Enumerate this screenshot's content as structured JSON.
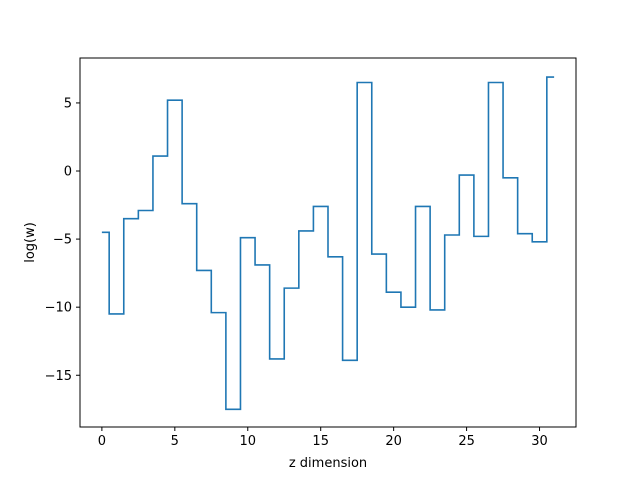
{
  "chart_data": {
    "type": "line",
    "drawstyle": "steps-mid",
    "title": "",
    "xlabel": "z dimension",
    "ylabel": "log(w)",
    "xlim": [
      -1.5,
      32.5
    ],
    "ylim": [
      -18.8,
      8.3
    ],
    "xticks": [
      0,
      5,
      10,
      15,
      20,
      25,
      30
    ],
    "xtick_labels": [
      "0",
      "5",
      "10",
      "15",
      "20",
      "25",
      "30"
    ],
    "yticks": [
      5,
      0,
      -5,
      -10,
      -15
    ],
    "ytick_labels": [
      "5",
      "0",
      "−5",
      "−10",
      "−15"
    ],
    "grid": false,
    "legend": "none",
    "series": [
      {
        "color": "#1f77b4",
        "x": [
          0,
          1,
          2,
          3,
          4,
          5,
          6,
          7,
          8,
          9,
          10,
          11,
          12,
          13,
          14,
          15,
          16,
          17,
          18,
          19,
          20,
          21,
          22,
          23,
          24,
          25,
          26,
          27,
          28,
          29,
          30,
          31
        ],
        "values": [
          -4.5,
          -10.5,
          -3.5,
          -2.9,
          1.1,
          5.2,
          -2.4,
          -7.3,
          -10.4,
          -17.5,
          -4.9,
          -6.9,
          -13.8,
          -8.6,
          -4.4,
          -2.6,
          -6.3,
          -13.9,
          6.5,
          -6.1,
          -8.9,
          -10.0,
          -2.6,
          -10.2,
          -4.7,
          -0.3,
          -4.8,
          6.5,
          -0.5,
          -4.6,
          -5.2,
          6.9
        ]
      }
    ]
  }
}
